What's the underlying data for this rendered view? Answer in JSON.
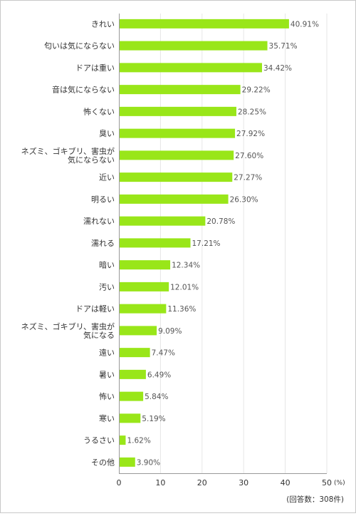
{
  "chart_data": {
    "type": "bar",
    "orientation": "horizontal",
    "categories": [
      [
        "きれい"
      ],
      [
        "匂いは気にならない"
      ],
      [
        "ドアは重い"
      ],
      [
        "音は気にならない"
      ],
      [
        "怖くない"
      ],
      [
        "臭い"
      ],
      [
        "ネズミ、ゴキブリ、害虫が",
        "気にならない"
      ],
      [
        "近い"
      ],
      [
        "明るい"
      ],
      [
        "濡れない"
      ],
      [
        "濡れる"
      ],
      [
        "暗い"
      ],
      [
        "汚い"
      ],
      [
        "ドアは軽い"
      ],
      [
        "ネズミ、ゴキブリ、害虫が",
        "気になる"
      ],
      [
        "遠い"
      ],
      [
        "暑い"
      ],
      [
        "怖い"
      ],
      [
        "寒い"
      ],
      [
        "うるさい"
      ],
      [
        "その他"
      ]
    ],
    "values": [
      40.91,
      35.71,
      34.42,
      29.22,
      28.25,
      27.92,
      27.6,
      27.27,
      26.3,
      20.78,
      17.21,
      12.34,
      12.01,
      11.36,
      9.09,
      7.47,
      6.49,
      5.84,
      5.19,
      1.62,
      3.9
    ],
    "value_labels": [
      "40.91%",
      "35.71%",
      "34.42%",
      "29.22%",
      "28.25%",
      "27.92%",
      "27.60%",
      "27.27%",
      "26.30%",
      "20.78%",
      "17.21%",
      "12.34%",
      "12.01%",
      "11.36%",
      "9.09%",
      "7.47%",
      "6.49%",
      "5.84%",
      "5.19%",
      "1.62%",
      "3.90%"
    ],
    "xlim": [
      0,
      50
    ],
    "xticks": [
      "0",
      "10",
      "20",
      "30",
      "40",
      "50"
    ],
    "xunit": "(%)",
    "note": "(回答数：308件)",
    "grid": "vertical",
    "bar_color": "#99e619"
  }
}
